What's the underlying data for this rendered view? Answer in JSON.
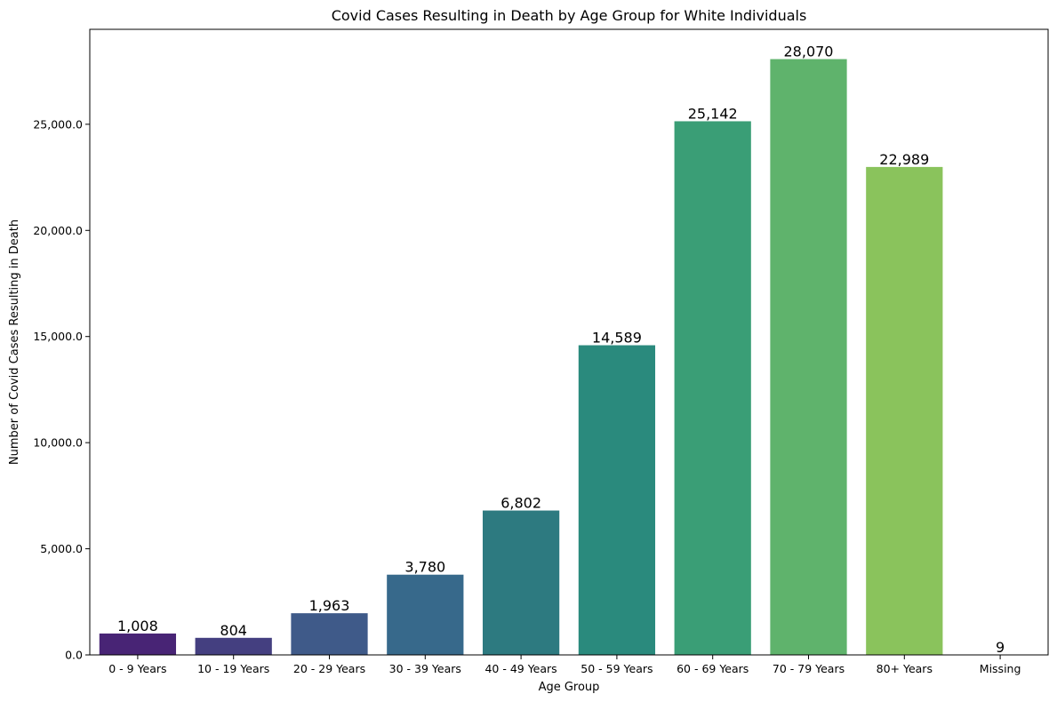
{
  "chart_data": {
    "type": "bar",
    "title": "Covid Cases Resulting in Death by Age Group for White Individuals",
    "xlabel": "Age Group",
    "ylabel": "Number of Covid Cases Resulting in Death",
    "categories": [
      "0 - 9 Years",
      "10 - 19 Years",
      "20 - 29 Years",
      "30 - 39 Years",
      "40 - 49 Years",
      "50 - 59 Years",
      "60 - 69 Years",
      "70 - 79 Years",
      "80+ Years",
      "Missing"
    ],
    "values": [
      1008,
      804,
      1963,
      3780,
      6802,
      14589,
      25142,
      28070,
      22989,
      9
    ],
    "data_labels": [
      "1,008",
      "804",
      "1,963",
      "3,780",
      "6,802",
      "14,589",
      "25,142",
      "28,070",
      "22,989",
      "9"
    ],
    "ylim": [
      0,
      29473.5
    ],
    "yticks": [
      0,
      5000,
      10000,
      15000,
      20000,
      25000
    ],
    "ytick_labels": [
      "0.0",
      "5,000.0",
      "10,000.0",
      "15,000.0",
      "20,000.0",
      "25,000.0"
    ],
    "grid": false,
    "colors": [
      "#482475",
      "#443f80",
      "#3f5a89",
      "#37698b",
      "#2d7a80",
      "#2a8a7d",
      "#3a9e76",
      "#5fb36c",
      "#8ac35c",
      "#bcd641"
    ]
  }
}
